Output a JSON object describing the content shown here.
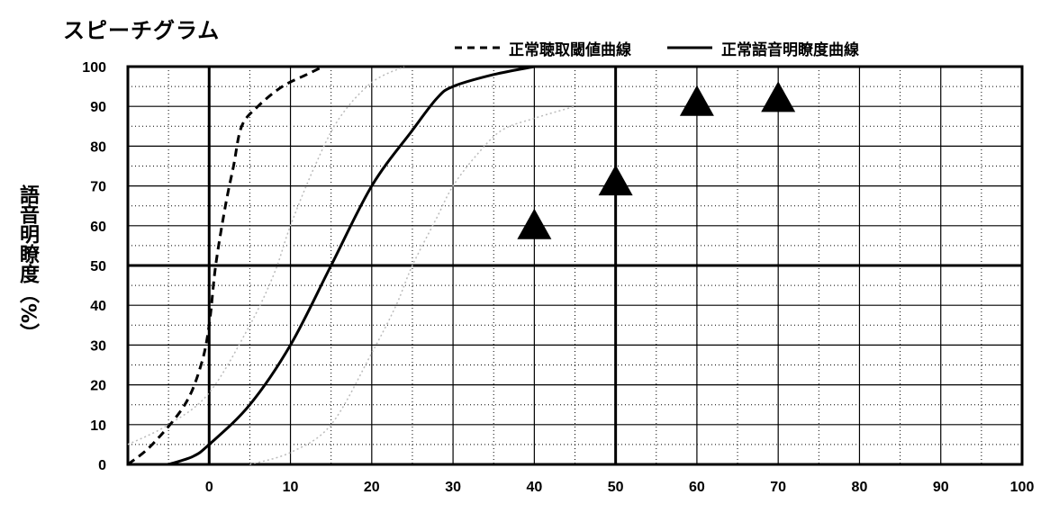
{
  "chart_data": {
    "type": "line",
    "title": "スピーチグラム",
    "xlabel": "",
    "ylabel": "語音明瞭度（%）",
    "xlim": [
      -10,
      100
    ],
    "ylim": [
      0,
      100
    ],
    "x_ticks": [
      0,
      10,
      20,
      30,
      40,
      50,
      60,
      70,
      80,
      90,
      100
    ],
    "y_ticks": [
      0,
      10,
      20,
      30,
      40,
      50,
      60,
      70,
      80,
      90,
      100
    ],
    "grid": true,
    "legend_position": "top-right",
    "legend": [
      "正常聴取閾値曲線",
      "正常語音明瞭度曲線"
    ],
    "series": [
      {
        "name": "正常聴取閾値曲線",
        "style": "dashed",
        "color": "#000000",
        "points": [
          [
            -10,
            0
          ],
          [
            -7,
            5
          ],
          [
            -3,
            15
          ],
          [
            -1,
            25
          ],
          [
            0,
            35
          ],
          [
            0.8,
            50
          ],
          [
            2,
            65
          ],
          [
            3,
            75
          ],
          [
            4,
            85
          ],
          [
            6,
            90
          ],
          [
            9,
            95
          ],
          [
            12,
            98
          ],
          [
            14,
            100
          ]
        ]
      },
      {
        "name": "正常語音明瞭度曲線",
        "style": "solid",
        "color": "#000000",
        "points": [
          [
            -5,
            0
          ],
          [
            -2,
            2
          ],
          [
            0,
            5
          ],
          [
            5,
            15
          ],
          [
            10,
            30
          ],
          [
            15,
            50
          ],
          [
            20,
            70
          ],
          [
            25,
            84
          ],
          [
            28,
            92
          ],
          [
            30,
            95
          ],
          [
            35,
            98
          ],
          [
            40,
            100
          ]
        ]
      },
      {
        "style": "dotted",
        "color": "#bbbbbb",
        "points": [
          [
            -10,
            5
          ],
          [
            -5,
            10
          ],
          [
            0,
            18
          ],
          [
            5,
            35
          ],
          [
            8,
            48
          ],
          [
            10,
            60
          ],
          [
            13,
            75
          ],
          [
            16,
            87
          ],
          [
            20,
            96
          ],
          [
            24,
            100
          ]
        ]
      },
      {
        "style": "dotted",
        "color": "#bbbbbb",
        "points": [
          [
            5,
            0
          ],
          [
            10,
            3
          ],
          [
            15,
            10
          ],
          [
            20,
            28
          ],
          [
            23,
            40
          ],
          [
            25,
            50
          ],
          [
            28,
            62
          ],
          [
            30,
            70
          ],
          [
            33,
            78
          ],
          [
            36,
            84
          ],
          [
            40,
            87
          ],
          [
            45,
            90
          ]
        ]
      }
    ],
    "markers": {
      "shape": "triangle",
      "color": "#000000",
      "points": [
        [
          40,
          60
        ],
        [
          50,
          71
        ],
        [
          60,
          91
        ],
        [
          70,
          92
        ]
      ]
    }
  }
}
